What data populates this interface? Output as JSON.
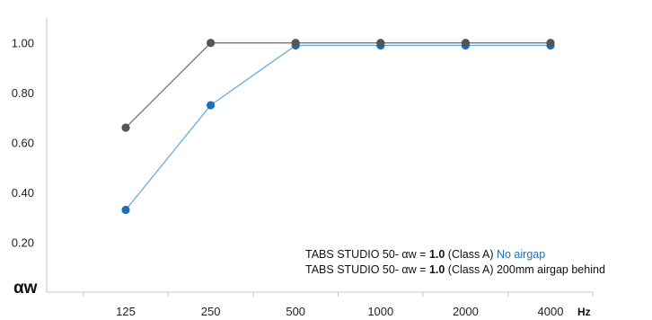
{
  "chart_data": {
    "type": "line",
    "title": "",
    "xlabel": "Hz",
    "ylabel": "αw",
    "categories": [
      "125",
      "250",
      "500",
      "1000",
      "2000",
      "4000"
    ],
    "y_ticks": [
      "0.20",
      "0.40",
      "0.60",
      "0.80",
      "1.00"
    ],
    "ylim": [
      0.0,
      1.1
    ],
    "grid": false,
    "series": [
      {
        "name": "No airgap",
        "color": "#1f6fb2",
        "line_color": "#5aa7e0",
        "values": [
          0.33,
          0.75,
          0.99,
          0.99,
          0.99,
          0.99
        ]
      },
      {
        "name": "200mm airgap behind",
        "color": "#555555",
        "line_color": "#6a6a6a",
        "values": [
          0.66,
          1.0,
          1.0,
          1.0,
          1.0,
          1.0
        ]
      }
    ],
    "legend": {
      "placement": "bottom-right",
      "entries": [
        {
          "prefix": "TABS STUDIO 50- αw = ",
          "value": "1.0",
          "class_text": " (Class A) ",
          "suffix": "No airgap",
          "suffix_color": "#1f6fb2"
        },
        {
          "prefix": "TABS STUDIO 50- αw = ",
          "value": "1.0",
          "class_text": " (Class A) ",
          "suffix": "200mm airgap behind",
          "suffix_color": "#111111"
        }
      ]
    }
  }
}
